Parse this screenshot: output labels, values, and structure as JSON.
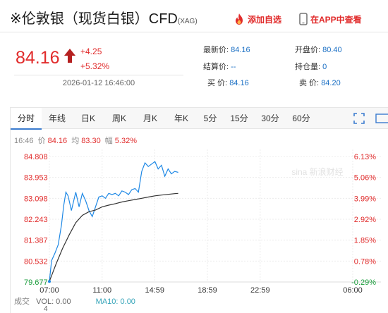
{
  "header": {
    "title_prefix": "※",
    "title_main": "伦敦银（现货白银）CFD",
    "title_sub": "(XAG)",
    "add_fav": "添加自选",
    "app_view": "在APP中查看",
    "accent_color": "#e12b2b"
  },
  "quote": {
    "price": "84.16",
    "change": "+4.25",
    "change_pct": "+5.32%",
    "datetime": "2026-01-12 16:46:00",
    "fields": [
      {
        "label": "最新价:",
        "value": "84.16"
      },
      {
        "label": "结算价:",
        "value": "--"
      },
      {
        "label": "买  价:",
        "value": "84.16"
      },
      {
        "label": "开盘价:",
        "value": "80.40"
      },
      {
        "label": "持仓量:",
        "value": "0"
      },
      {
        "label": "卖  价:",
        "value": "84.20"
      }
    ]
  },
  "tabs": [
    "分时",
    "年线",
    "日K",
    "周K",
    "月K",
    "年K",
    "5分",
    "15分",
    "30分",
    "60分"
  ],
  "active_tab": "分时",
  "info_line": {
    "time": "16:46",
    "price_label": "价",
    "price": "84.16",
    "avg_label": "均",
    "avg": "83.30",
    "amp_label": "幅",
    "amp": "5.32%"
  },
  "bottom_legend": {
    "label": "成交",
    "vol": "VOL: 0.00",
    "ma": "MA10: 0.00",
    "num": "4"
  },
  "chart_data": {
    "type": "line",
    "title": "",
    "xlabel": "",
    "ylabel": "",
    "x_ticks": [
      "07:00",
      "11:00",
      "14:59",
      "18:59",
      "22:59",
      "06:00"
    ],
    "x_range": [
      "07:00",
      "06:00"
    ],
    "ylim": [
      79.677,
      84.808
    ],
    "y_ticks": [
      84.808,
      83.953,
      83.098,
      82.243,
      81.387,
      80.532,
      79.677
    ],
    "pct_ticks": [
      "6.13%",
      "5.06%",
      "3.99%",
      "2.92%",
      "1.85%",
      "0.78%",
      "-0.29%"
    ],
    "base_price": 79.91,
    "series": [
      {
        "color": "#1e88e5",
        "x": [
          "07:00",
          "07:10",
          "07:25",
          "07:40",
          "07:55",
          "08:05",
          "08:15",
          "08:25",
          "08:40",
          "09:00",
          "09:15",
          "09:30",
          "09:45",
          "10:00",
          "10:15",
          "10:30",
          "10:45",
          "11:00",
          "11:15",
          "11:30",
          "11:45",
          "12:00",
          "12:15",
          "12:30",
          "12:45",
          "13:00",
          "13:15",
          "13:30",
          "13:45",
          "14:00",
          "14:15",
          "14:30",
          "14:45",
          "15:00",
          "15:15",
          "15:30",
          "15:45",
          "16:00",
          "16:15",
          "16:30",
          "16:46"
        ],
        "values": [
          79.7,
          80.55,
          80.85,
          81.2,
          82.0,
          82.8,
          83.35,
          83.2,
          82.6,
          83.35,
          82.75,
          83.3,
          83.0,
          82.6,
          82.35,
          82.75,
          83.15,
          83.2,
          83.1,
          83.3,
          83.25,
          83.3,
          83.2,
          83.4,
          83.35,
          83.25,
          83.45,
          83.5,
          83.35,
          84.2,
          84.55,
          84.4,
          84.5,
          84.6,
          84.3,
          84.45,
          84.0,
          84.3,
          84.1,
          84.2,
          84.16
        ]
      },
      {
        "color": "#333333",
        "x": [
          "07:00",
          "07:30",
          "08:00",
          "08:30",
          "09:00",
          "09:30",
          "10:00",
          "10:30",
          "11:00",
          "11:30",
          "12:00",
          "12:30",
          "13:00",
          "13:30",
          "14:00",
          "14:30",
          "15:00",
          "15:30",
          "16:00",
          "16:30",
          "16:46"
        ],
        "values": [
          79.7,
          80.4,
          81.05,
          81.6,
          82.1,
          82.4,
          82.55,
          82.62,
          82.75,
          82.82,
          82.88,
          82.95,
          83.0,
          83.05,
          83.1,
          83.15,
          83.2,
          83.23,
          83.26,
          83.29,
          83.3
        ]
      }
    ],
    "watermark": "sina 新浪财经"
  }
}
